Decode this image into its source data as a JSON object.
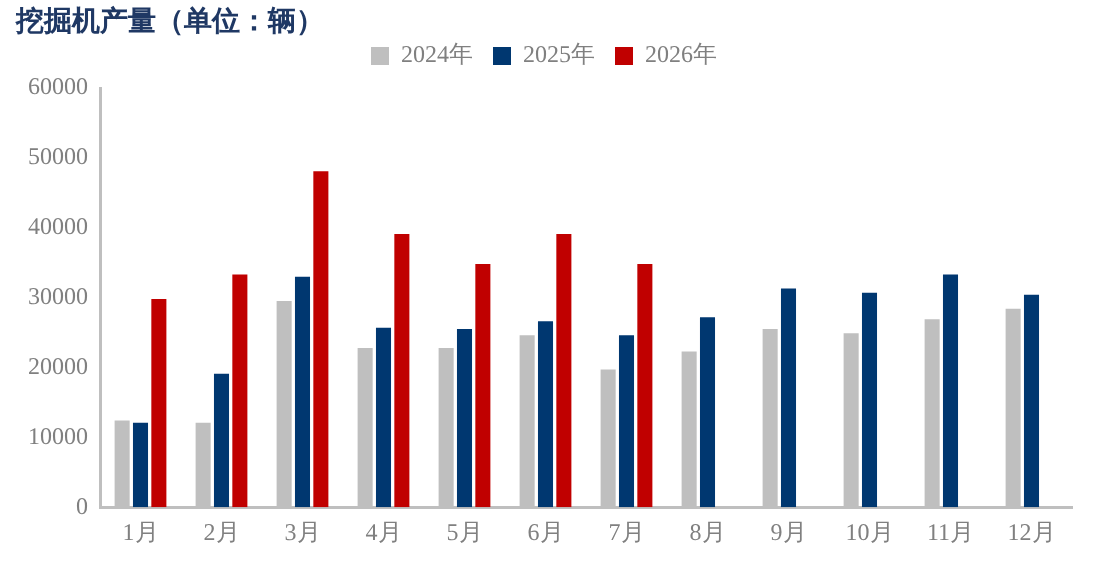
{
  "chart_data": {
    "type": "bar",
    "title": "挖掘机产量（单位：辆）",
    "categories": [
      "1月",
      "2月",
      "3月",
      "4月",
      "5月",
      "6月",
      "7月",
      "8月",
      "9月",
      "10月",
      "11月",
      "12月"
    ],
    "series": [
      {
        "name": "2024年",
        "color": "#bfbfbf",
        "values": [
          12400,
          12100,
          29500,
          22800,
          22800,
          24600,
          19700,
          22300,
          25500,
          24900,
          26900,
          28400
        ]
      },
      {
        "name": "2025年",
        "color": "#003770",
        "values": [
          12100,
          19100,
          33000,
          25700,
          25500,
          26600,
          24600,
          27200,
          31300,
          30700,
          33300,
          30400
        ]
      },
      {
        "name": "2026年",
        "color": "#c00000",
        "values": [
          29800,
          33300,
          48100,
          39100,
          34800,
          39100,
          34800,
          null,
          null,
          null,
          null,
          null
        ]
      }
    ],
    "ylim": [
      0,
      60000
    ],
    "yticks": [
      0,
      10000,
      20000,
      30000,
      40000,
      50000,
      60000
    ],
    "grid": false,
    "legend": "top"
  }
}
